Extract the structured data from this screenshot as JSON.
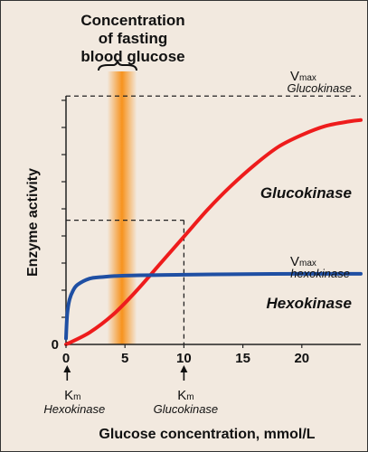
{
  "chart_data": {
    "type": "line",
    "title_lines": [
      "Concentration",
      "of fasting",
      "blood glucose"
    ],
    "xlabel": "Glucose concentration, mmol/L",
    "ylabel": "Enzyme activity",
    "xlim": [
      0,
      25
    ],
    "xticks": [
      "0",
      "5",
      "10",
      "15",
      "20"
    ],
    "y_origin_label": "0",
    "fasting_band": {
      "x_from": 3.5,
      "x_to": 6.0,
      "color": "#f7931e"
    },
    "series": [
      {
        "name": "Glucokinase",
        "color": "#ee1c1c",
        "points": [
          [
            0,
            0.0
          ],
          [
            2,
            0.04
          ],
          [
            4,
            0.1
          ],
          [
            6,
            0.18
          ],
          [
            8,
            0.27
          ],
          [
            10,
            0.36
          ],
          [
            12,
            0.45
          ],
          [
            14,
            0.53
          ],
          [
            16,
            0.6
          ],
          [
            18,
            0.66
          ],
          [
            20,
            0.7
          ],
          [
            22,
            0.73
          ],
          [
            24,
            0.745
          ],
          [
            25,
            0.75
          ]
        ],
        "vmax": 0.83
      },
      {
        "name": "Hexokinase",
        "color": "#1f4fa3",
        "points": [
          [
            0,
            0.02
          ],
          [
            0.1,
            0.1
          ],
          [
            0.3,
            0.15
          ],
          [
            0.6,
            0.18
          ],
          [
            1,
            0.2
          ],
          [
            2,
            0.22
          ],
          [
            3,
            0.225
          ],
          [
            5,
            0.23
          ],
          [
            10,
            0.233
          ],
          [
            15,
            0.235
          ],
          [
            20,
            0.236
          ],
          [
            25,
            0.236
          ]
        ],
        "vmax": 0.236
      }
    ],
    "annotations": {
      "vmax_gk_main": "V",
      "vmax_gk_sub": "max",
      "vmax_gk_name": "Glucokinase",
      "vmax_hk_main": "V",
      "vmax_hk_sub": "max",
      "vmax_hk_name": "hexokinase",
      "km_hk_main": "K",
      "km_hk_sub": "m",
      "km_hk_name": "Hexokinase",
      "km_gk_main": "K",
      "km_gk_sub": "m",
      "km_gk_name": "Glucokinase",
      "km_hk_x": 0.1,
      "km_gk_x": 10
    },
    "grid": false
  }
}
